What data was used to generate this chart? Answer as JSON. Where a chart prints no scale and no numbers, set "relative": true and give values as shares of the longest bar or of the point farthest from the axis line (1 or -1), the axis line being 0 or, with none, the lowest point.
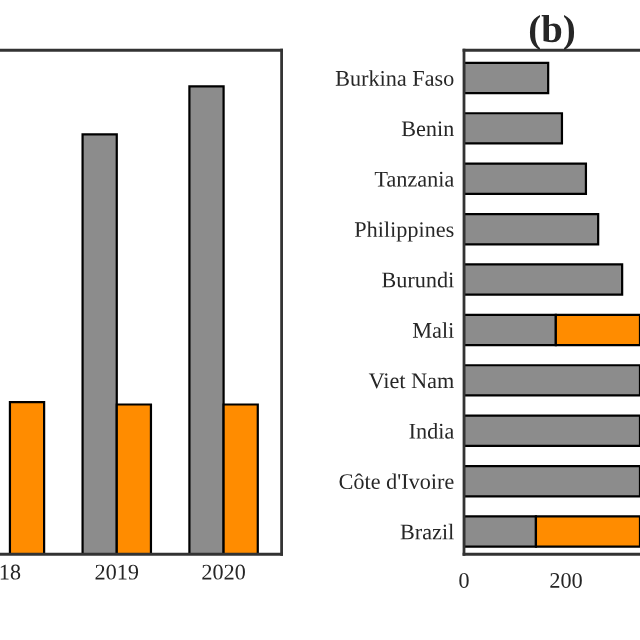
{
  "chart_data": [
    {
      "type": "bar",
      "relative": true,
      "categories": [
        "18",
        "2019",
        "2020"
      ],
      "series": [
        {
          "color": "#8c8c8c",
          "values": [
            null,
            0.897,
            1
          ]
        },
        {
          "color": "#ff8c00",
          "values": [
            0.325,
            0.32,
            0.32
          ]
        }
      ]
    },
    {
      "type": "bar",
      "title": "(b)",
      "orientation": "horizontal",
      "stacked": true,
      "categories": [
        "Burkina Faso",
        "Benin",
        "Tanzania",
        "Philippines",
        "Burundi",
        "Mali",
        "Viet Nam",
        "India",
        "Côte d'Ivoire",
        "Brazil"
      ],
      "xlim": [
        0,
        345
      ],
      "xticks": [
        0,
        200
      ],
      "series": [
        {
          "color": "#8c8c8c",
          "values": [
            165,
            192,
            239,
            263,
            310,
            180,
            345,
            345,
            345,
            141
          ]
        },
        {
          "color": "#ff8c00",
          "values": [
            null,
            null,
            null,
            null,
            null,
            165,
            null,
            null,
            null,
            204
          ]
        }
      ]
    }
  ]
}
